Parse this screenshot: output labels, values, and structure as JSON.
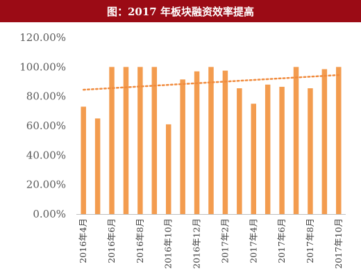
{
  "title": "图：2017 年板块融资效率提高",
  "chart_data": {
    "type": "bar",
    "title": "图：2017 年板块融资效率提高",
    "xlabel": "",
    "ylabel": "",
    "ylim": [
      0,
      1.2
    ],
    "y_ticks": [
      0,
      0.2,
      0.4,
      0.6,
      0.8,
      1.0,
      1.2
    ],
    "y_tick_labels": [
      "0.00%",
      "20.00%",
      "40.00%",
      "60.00%",
      "80.00%",
      "100.00%",
      "120.00%"
    ],
    "categories": [
      "2016年4月",
      "2016年5月",
      "2016年6月",
      "2016年7月",
      "2016年8月",
      "2016年9月",
      "2016年10月",
      "2016年11月",
      "2016年12月",
      "2017年1月",
      "2017年2月",
      "2017年3月",
      "2017年4月",
      "2017年5月",
      "2017年6月",
      "2017年7月",
      "2017年8月",
      "2017年9月",
      "2017年10月"
    ],
    "x_tick_labels": [
      "2016年4月",
      "",
      "2016年6月",
      "",
      "2016年8月",
      "",
      "2016年10月",
      "",
      "2016年12月",
      "",
      "2017年2月",
      "",
      "2017年4月",
      "",
      "2017年6月",
      "",
      "2017年8月",
      "",
      "2017年10月"
    ],
    "values": [
      0.73,
      0.65,
      1.0,
      1.0,
      1.0,
      1.0,
      0.61,
      0.915,
      0.97,
      1.0,
      0.975,
      0.855,
      0.75,
      0.88,
      0.865,
      1.0,
      0.855,
      0.985,
      1.0
    ],
    "trendline": {
      "type": "linear",
      "start": 0.845,
      "end": 0.945
    },
    "colors": {
      "bar": "#f39c4f",
      "trend": "#f08a3c",
      "axis": "#bfbfbf",
      "title_bg": "#9b0b15",
      "title_text": "#ffffff"
    },
    "grid": false,
    "legend": "none"
  }
}
